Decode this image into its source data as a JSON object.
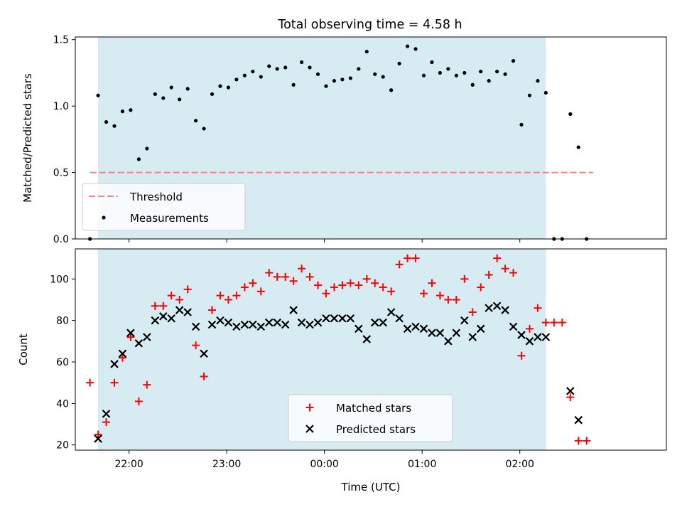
{
  "title": "Total observing time = 4.58 h",
  "colors": {
    "observing_window": "#add8e6",
    "threshold": "#ff7f7f",
    "measurements": "#000000",
    "matched": "#ff0000",
    "predicted": "#000000"
  },
  "chart_data": [
    {
      "type": "scatter",
      "ylabel": "Matched/Predicted stars",
      "xlabel": "",
      "xlim": [
        "21:27",
        "03:30"
      ],
      "ylim": [
        0,
        1.52
      ],
      "yticks": [
        "0.0",
        "0.5",
        "1.0",
        "1.5"
      ],
      "grid": false,
      "legend_position": "lower-left",
      "observing_window": {
        "start": "21:41",
        "end": "02:16"
      },
      "threshold": {
        "name": "Threshold",
        "y": 0.5,
        "x_start": "21:36",
        "x_end": "02:45",
        "style": "dashed"
      },
      "series": [
        {
          "name": "Measurements",
          "marker": "dot",
          "points": [
            [
              "21:36",
              0.0
            ],
            [
              "21:41",
              1.08
            ],
            [
              "21:46",
              0.88
            ],
            [
              "21:51",
              0.85
            ],
            [
              "21:56",
              0.96
            ],
            [
              "22:01",
              0.97
            ],
            [
              "22:06",
              0.6
            ],
            [
              "22:11",
              0.68
            ],
            [
              "22:16",
              1.09
            ],
            [
              "22:21",
              1.06
            ],
            [
              "22:26",
              1.14
            ],
            [
              "22:31",
              1.05
            ],
            [
              "22:36",
              1.13
            ],
            [
              "22:41",
              0.89
            ],
            [
              "22:46",
              0.83
            ],
            [
              "22:51",
              1.09
            ],
            [
              "22:56",
              1.15
            ],
            [
              "23:01",
              1.14
            ],
            [
              "23:06",
              1.2
            ],
            [
              "23:11",
              1.23
            ],
            [
              "23:16",
              1.26
            ],
            [
              "23:21",
              1.22
            ],
            [
              "23:26",
              1.3
            ],
            [
              "23:31",
              1.28
            ],
            [
              "23:36",
              1.29
            ],
            [
              "23:41",
              1.16
            ],
            [
              "23:46",
              1.33
            ],
            [
              "23:51",
              1.29
            ],
            [
              "23:56",
              1.24
            ],
            [
              "00:01",
              1.15
            ],
            [
              "00:06",
              1.19
            ],
            [
              "00:11",
              1.2
            ],
            [
              "00:16",
              1.21
            ],
            [
              "00:21",
              1.28
            ],
            [
              "00:26",
              1.41
            ],
            [
              "00:31",
              1.24
            ],
            [
              "00:36",
              1.22
            ],
            [
              "00:41",
              1.12
            ],
            [
              "00:46",
              1.32
            ],
            [
              "00:51",
              1.45
            ],
            [
              "00:56",
              1.43
            ],
            [
              "01:01",
              1.23
            ],
            [
              "01:06",
              1.33
            ],
            [
              "01:11",
              1.25
            ],
            [
              "01:16",
              1.28
            ],
            [
              "01:21",
              1.23
            ],
            [
              "01:26",
              1.25
            ],
            [
              "01:31",
              1.16
            ],
            [
              "01:36",
              1.26
            ],
            [
              "01:41",
              1.19
            ],
            [
              "01:46",
              1.26
            ],
            [
              "01:51",
              1.24
            ],
            [
              "01:56",
              1.34
            ],
            [
              "02:01",
              0.86
            ],
            [
              "02:06",
              1.08
            ],
            [
              "02:11",
              1.19
            ],
            [
              "02:16",
              1.1
            ],
            [
              "02:21",
              0.0
            ],
            [
              "02:26",
              0.0
            ],
            [
              "02:31",
              0.94
            ],
            [
              "02:36",
              0.69
            ],
            [
              "02:41",
              0.0
            ]
          ]
        }
      ]
    },
    {
      "type": "scatter",
      "ylabel": "Count",
      "xlabel": "Time (UTC)",
      "xlim": [
        "21:27",
        "03:30"
      ],
      "ylim": [
        17.5,
        114.5
      ],
      "yticks": [
        "20",
        "40",
        "60",
        "80",
        "100"
      ],
      "xticks": [
        "22:00",
        "23:00",
        "00:00",
        "01:00",
        "02:00"
      ],
      "grid": false,
      "legend_position": "lower-center",
      "observing_window": {
        "start": "21:41",
        "end": "02:16"
      },
      "series": [
        {
          "name": "Matched stars",
          "marker": "plus",
          "points": [
            [
              "21:36",
              50
            ],
            [
              "21:41",
              25
            ],
            [
              "21:46",
              31
            ],
            [
              "21:51",
              50
            ],
            [
              "21:56",
              62
            ],
            [
              "22:01",
              72
            ],
            [
              "22:06",
              41
            ],
            [
              "22:11",
              49
            ],
            [
              "22:16",
              87
            ],
            [
              "22:21",
              87
            ],
            [
              "22:26",
              92
            ],
            [
              "22:31",
              90
            ],
            [
              "22:36",
              95
            ],
            [
              "22:41",
              68
            ],
            [
              "22:46",
              53
            ],
            [
              "22:51",
              85
            ],
            [
              "22:56",
              92
            ],
            [
              "23:01",
              90
            ],
            [
              "23:06",
              92
            ],
            [
              "23:11",
              96
            ],
            [
              "23:16",
              98
            ],
            [
              "23:21",
              94
            ],
            [
              "23:26",
              103
            ],
            [
              "23:31",
              101
            ],
            [
              "23:36",
              101
            ],
            [
              "23:41",
              99
            ],
            [
              "23:46",
              105
            ],
            [
              "23:51",
              101
            ],
            [
              "23:56",
              97
            ],
            [
              "00:01",
              93
            ],
            [
              "00:06",
              96
            ],
            [
              "00:11",
              97
            ],
            [
              "00:16",
              98
            ],
            [
              "00:21",
              97
            ],
            [
              "00:26",
              100
            ],
            [
              "00:31",
              98
            ],
            [
              "00:36",
              96
            ],
            [
              "00:41",
              94
            ],
            [
              "00:46",
              107
            ],
            [
              "00:51",
              110
            ],
            [
              "00:56",
              110
            ],
            [
              "01:01",
              93
            ],
            [
              "01:06",
              98
            ],
            [
              "01:11",
              92
            ],
            [
              "01:16",
              90
            ],
            [
              "01:21",
              90
            ],
            [
              "01:26",
              100
            ],
            [
              "01:31",
              84
            ],
            [
              "01:36",
              96
            ],
            [
              "01:41",
              102
            ],
            [
              "01:46",
              110
            ],
            [
              "01:51",
              105
            ],
            [
              "01:56",
              103
            ],
            [
              "02:01",
              63
            ],
            [
              "02:06",
              76
            ],
            [
              "02:11",
              86
            ],
            [
              "02:16",
              79
            ],
            [
              "02:21",
              79
            ],
            [
              "02:26",
              79
            ],
            [
              "02:31",
              43
            ],
            [
              "02:36",
              22
            ],
            [
              "02:41",
              22
            ]
          ]
        },
        {
          "name": "Predicted stars",
          "marker": "x",
          "points": [
            [
              "21:41",
              23
            ],
            [
              "21:46",
              35
            ],
            [
              "21:51",
              59
            ],
            [
              "21:56",
              64
            ],
            [
              "22:01",
              74
            ],
            [
              "22:06",
              69
            ],
            [
              "22:11",
              72
            ],
            [
              "22:16",
              80
            ],
            [
              "22:21",
              82
            ],
            [
              "22:26",
              81
            ],
            [
              "22:31",
              85
            ],
            [
              "22:36",
              84
            ],
            [
              "22:41",
              77
            ],
            [
              "22:46",
              64
            ],
            [
              "22:51",
              78
            ],
            [
              "22:56",
              80
            ],
            [
              "23:01",
              79
            ],
            [
              "23:06",
              77
            ],
            [
              "23:11",
              78
            ],
            [
              "23:16",
              78
            ],
            [
              "23:21",
              77
            ],
            [
              "23:26",
              79
            ],
            [
              "23:31",
              79
            ],
            [
              "23:36",
              78
            ],
            [
              "23:41",
              85
            ],
            [
              "23:46",
              79
            ],
            [
              "23:51",
              78
            ],
            [
              "23:56",
              79
            ],
            [
              "00:01",
              81
            ],
            [
              "00:06",
              81
            ],
            [
              "00:11",
              81
            ],
            [
              "00:16",
              81
            ],
            [
              "00:21",
              76
            ],
            [
              "00:26",
              71
            ],
            [
              "00:31",
              79
            ],
            [
              "00:36",
              79
            ],
            [
              "00:41",
              84
            ],
            [
              "00:46",
              81
            ],
            [
              "00:51",
              76
            ],
            [
              "00:56",
              77
            ],
            [
              "01:01",
              76
            ],
            [
              "01:06",
              74
            ],
            [
              "01:11",
              74
            ],
            [
              "01:16",
              70
            ],
            [
              "01:21",
              74
            ],
            [
              "01:26",
              80
            ],
            [
              "01:31",
              72
            ],
            [
              "01:36",
              76
            ],
            [
              "01:41",
              86
            ],
            [
              "01:46",
              87
            ],
            [
              "01:51",
              85
            ],
            [
              "01:56",
              77
            ],
            [
              "02:01",
              73
            ],
            [
              "02:06",
              70
            ],
            [
              "02:11",
              72
            ],
            [
              "02:16",
              72
            ],
            [
              "02:31",
              46
            ],
            [
              "02:36",
              32
            ]
          ]
        }
      ]
    }
  ]
}
